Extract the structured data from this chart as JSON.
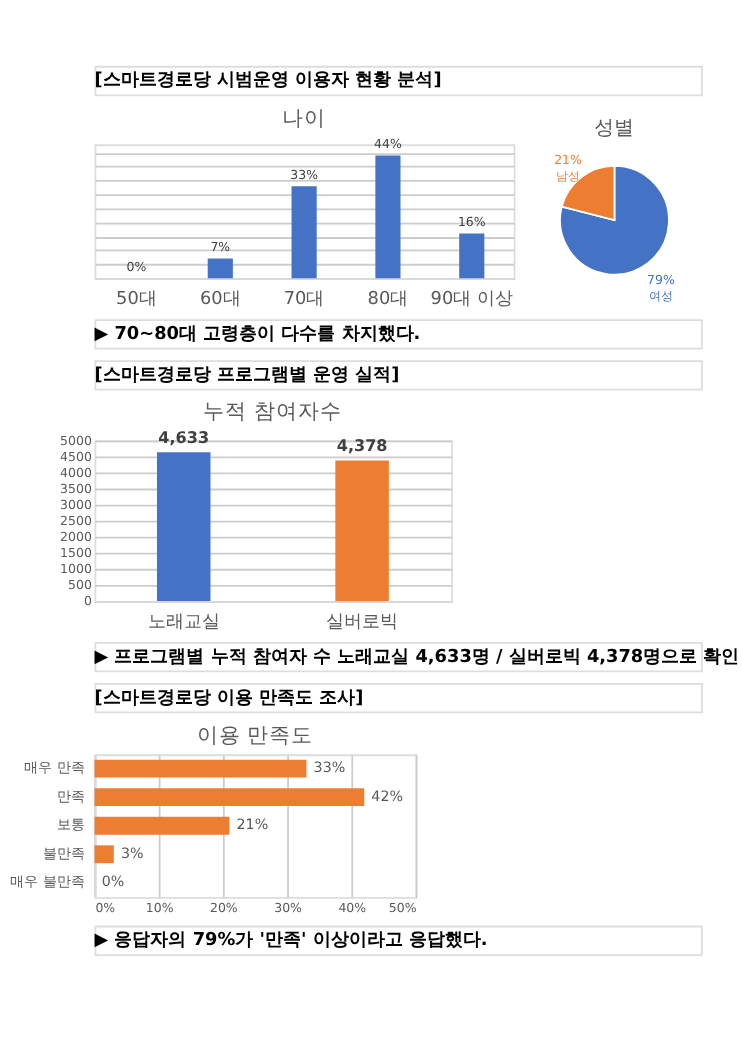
{
  "chart_data": [
    {
      "type": "bar",
      "title": "나이",
      "categories": [
        "50대",
        "60대",
        "70대",
        "80대",
        "90대 이상"
      ],
      "values": [
        0,
        7,
        33,
        44,
        16
      ],
      "color": "#4472c4",
      "value_labels": [
        "0%",
        "7%",
        "33%",
        "44%",
        "16%"
      ],
      "ylim": [
        0,
        48
      ],
      "grid": "y",
      "tick_labels": "x",
      "annotations": [
        "[스마트경로당 시범운영 이용자 현황 분석]",
        "▶ 70~80대 고령층이 다수를 차지했다."
      ]
    },
    {
      "type": "pie",
      "title": "성별",
      "categories": [
        "여성",
        "남성"
      ],
      "values": [
        79,
        21
      ],
      "colors": [
        "#4472c4",
        "#ed7d31"
      ],
      "value_labels": [
        "79%",
        "21%"
      ]
    },
    {
      "type": "bar",
      "title": "누적 참여자수",
      "categories": [
        "노래교실",
        "실버로빅"
      ],
      "values": [
        4633,
        4378
      ],
      "colors": [
        "#4472c4",
        "#ed7d31"
      ],
      "value_labels": [
        "4,633",
        "4,378"
      ],
      "ylim": [
        0,
        5000
      ],
      "yticks": [
        0,
        500,
        1000,
        1500,
        2000,
        2500,
        3000,
        3500,
        4000,
        4500,
        5000
      ],
      "grid": "y",
      "annotations": [
        "[스마트경로당 프로그램별 운영 실적]",
        "▶ 프로그램별 누적 참여자 수 노래교실 4,633명 / 실버로빅 4,378명으로 확인"
      ]
    },
    {
      "type": "bar",
      "orientation": "horizontal",
      "title": "이용 만족도",
      "categories": [
        "매우 만족",
        "만족",
        "보통",
        "불만족",
        "매우 불만족"
      ],
      "values": [
        33,
        42,
        21,
        3,
        0
      ],
      "color": "#ed7d31",
      "value_labels": [
        "33%",
        "42%",
        "21%",
        "3%",
        "0%"
      ],
      "xlim": [
        0,
        50
      ],
      "xticks": [
        {
          "value": 0,
          "label": "0%"
        },
        {
          "value": 10,
          "label": "10%"
        },
        {
          "value": 20,
          "label": "20%"
        },
        {
          "value": 30,
          "label": "30%"
        },
        {
          "value": 40,
          "label": "40%"
        },
        {
          "value": 50,
          "label": "50%"
        }
      ],
      "grid": "x",
      "annotations": [
        "[스마트경로당 이용 만족도 조사]",
        "▶ 응답자의 79%가 '만족' 이상이라고 응답했다."
      ]
    }
  ]
}
